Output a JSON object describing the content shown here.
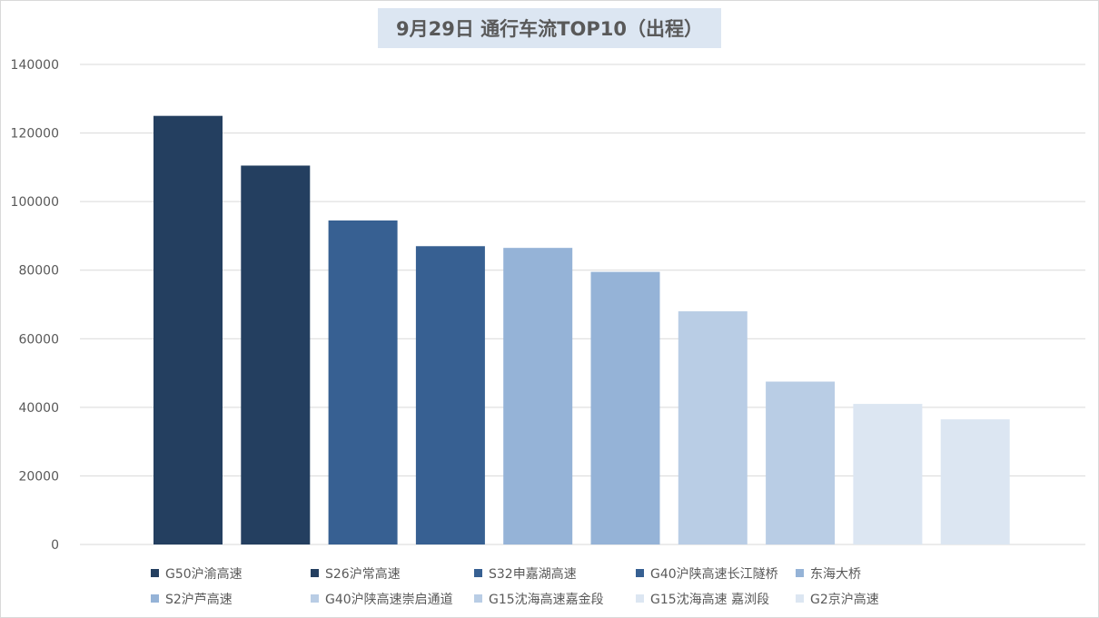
{
  "chart_data": {
    "type": "bar",
    "title": "9月29日 通行车流TOP10（出程）",
    "categories": [
      "G50沪渝高速",
      "S26沪常高速",
      "S32申嘉湖高速",
      "G40沪陕高速长江隧桥",
      "东海大桥",
      "S2沪芦高速",
      "G40沪陕高速崇启通道",
      "G15沈海高速嘉金段",
      "G15沈海高速 嘉浏段",
      "G2京沪高速"
    ],
    "values": [
      125000,
      110500,
      94500,
      87000,
      86500,
      79500,
      68000,
      47500,
      41000,
      36500
    ],
    "colors": [
      "#243f60",
      "#243f60",
      "#376092",
      "#376092",
      "#95b3d7",
      "#95b3d7",
      "#b9cde5",
      "#b9cde5",
      "#dce6f2",
      "#dce6f2"
    ],
    "ylim": [
      0,
      140000
    ],
    "yticks": [
      0,
      20000,
      40000,
      60000,
      80000,
      100000,
      120000,
      140000
    ],
    "grid": true,
    "legend_position": "bottom",
    "xlabel": "",
    "ylabel": ""
  }
}
